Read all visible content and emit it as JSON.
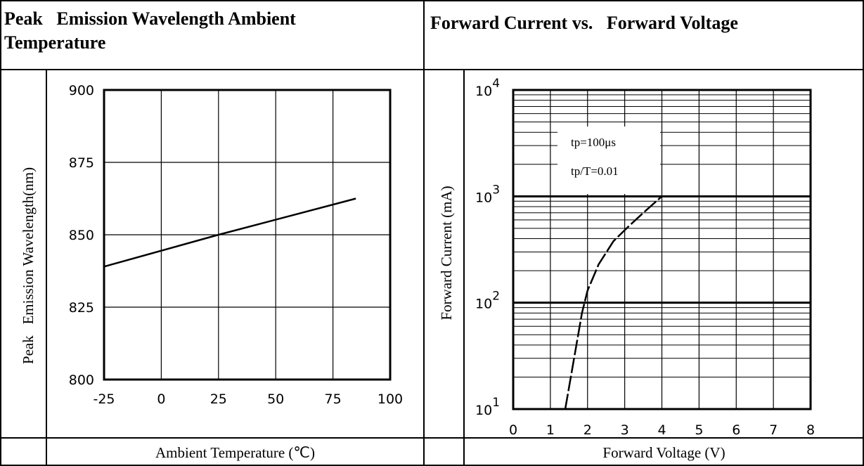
{
  "headers": {
    "left_title_line1": "Peak   Emission Wavelength Ambient",
    "left_title_line2": "Temperature",
    "right_title": "Forward Current vs.   Forward Voltage"
  },
  "chart_data": [
    {
      "type": "line",
      "title": "Peak   Emission Wavelength Ambient Temperature",
      "xlabel": "Ambient Temperature (℃)",
      "ylabel": "Peak   Emission Wavelength(nm)",
      "xlim": [
        -25,
        100
      ],
      "ylim": [
        800,
        900
      ],
      "x_ticks": [
        "-25",
        "0",
        "25",
        "50",
        "75",
        "100"
      ],
      "y_ticks": [
        "800",
        "825",
        "850",
        "875",
        "900"
      ],
      "grid": true,
      "series": [
        {
          "x": [
            -25,
            25,
            85
          ],
          "y": [
            839,
            850,
            862.5
          ]
        }
      ]
    },
    {
      "type": "line",
      "title": "Forward Current vs.   Forward Voltage",
      "xlabel": "Forward Voltage (V)",
      "ylabel": "Forward Current (mA)",
      "xlim": [
        0,
        8
      ],
      "ylim": [
        10,
        10000
      ],
      "yscale": "log",
      "x_ticks": [
        "0",
        "1",
        "2",
        "3",
        "4",
        "5",
        "6",
        "7",
        "8"
      ],
      "y_ticks": [
        {
          "base": "10",
          "exp": "1"
        },
        {
          "base": "10",
          "exp": "2"
        },
        {
          "base": "10",
          "exp": "3"
        },
        {
          "base": "10",
          "exp": "4"
        }
      ],
      "grid": true,
      "annotations": [
        "tp=100μs",
        "tp/T=0.01"
      ],
      "series": [
        {
          "x": [
            1.4,
            1.55,
            1.7,
            1.85,
            2.0,
            2.3,
            2.7,
            3.1,
            3.5,
            4.0
          ],
          "y": [
            10,
            20,
            40,
            80,
            130,
            230,
            380,
            520,
            700,
            1000
          ]
        }
      ]
    }
  ]
}
